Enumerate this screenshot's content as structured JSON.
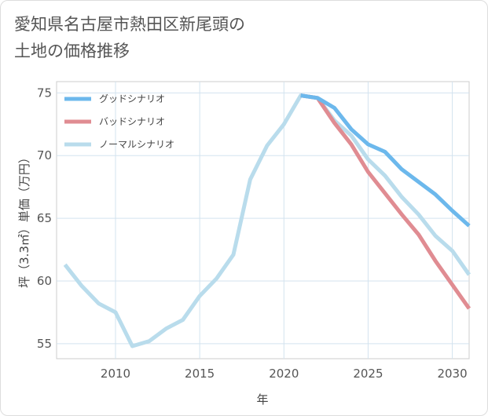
{
  "title": {
    "line1": "愛知県名古屋市熱田区新尾頭の",
    "line2": "土地の価格推移"
  },
  "chart_data": {
    "type": "line",
    "xlabel": "年",
    "ylabel": "坪（3.3㎡）単価（万円）",
    "xlim": [
      2006.5,
      2031
    ],
    "ylim": [
      53.8,
      75.9
    ],
    "xticks": [
      2010,
      2015,
      2020,
      2025,
      2030
    ],
    "yticks": [
      55,
      60,
      65,
      70,
      75
    ],
    "grid": true,
    "legend_position": "top-left",
    "series": [
      {
        "name": "グッドシナリオ",
        "color": "#6cb8ec",
        "x": [
          2021,
          2022,
          2023,
          2024,
          2025,
          2026,
          2027,
          2028,
          2029,
          2030,
          2031
        ],
        "y": [
          74.8,
          74.6,
          73.8,
          72.1,
          70.9,
          70.3,
          68.9,
          67.9,
          66.9,
          65.6,
          64.4
        ]
      },
      {
        "name": "バッドシナリオ",
        "color": "#e08c92",
        "x": [
          2021,
          2022,
          2023,
          2024,
          2025,
          2026,
          2027,
          2028,
          2029,
          2030,
          2031
        ],
        "y": [
          74.8,
          74.6,
          72.6,
          70.9,
          68.7,
          67.0,
          65.3,
          63.7,
          61.6,
          59.7,
          57.8
        ]
      },
      {
        "name": "ノーマルシナリオ",
        "color": "#b9dcec",
        "x": [
          2007,
          2008,
          2009,
          2010,
          2011,
          2012,
          2013,
          2014,
          2015,
          2016,
          2017,
          2018,
          2019,
          2020,
          2021,
          2022,
          2023,
          2024,
          2025,
          2026,
          2027,
          2028,
          2029,
          2030,
          2031
        ],
        "y": [
          61.3,
          59.6,
          58.2,
          57.5,
          54.8,
          55.2,
          56.2,
          56.9,
          58.8,
          60.2,
          62.1,
          68.1,
          70.8,
          72.5,
          74.8,
          74.6,
          72.8,
          71.6,
          69.7,
          68.4,
          66.7,
          65.3,
          63.6,
          62.4,
          60.5
        ]
      }
    ]
  }
}
